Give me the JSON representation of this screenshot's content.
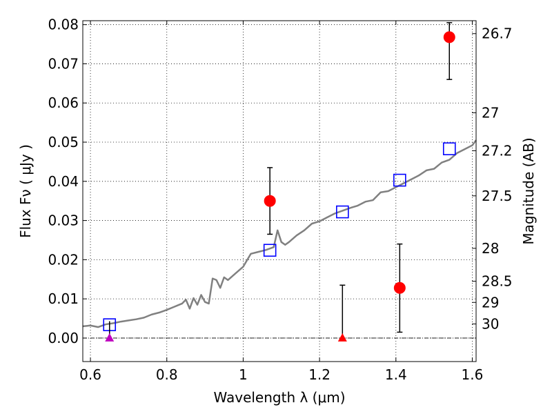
{
  "chart_data": {
    "type": "scatter",
    "title": "",
    "xlabel": "Wavelength  λ (μm)",
    "ylabel": "Flux  Fν  ( μJy )",
    "y2label": "Magnitude (AB)",
    "xlim": [
      0.58,
      1.61
    ],
    "ylim": [
      -0.006,
      0.081
    ],
    "grid": true,
    "x_ticks": [
      0.6,
      0.8,
      1.0,
      1.2,
      1.4,
      1.6
    ],
    "x_tick_labels": [
      "0.6",
      "0.8",
      "1",
      "1.2",
      "1.4",
      "1.6"
    ],
    "y_ticks": [
      0.0,
      0.01,
      0.02,
      0.03,
      0.04,
      0.05,
      0.06,
      0.07,
      0.08
    ],
    "y_tick_labels": [
      "0.00",
      "0.01",
      "0.02",
      "0.03",
      "0.04",
      "0.05",
      "0.06",
      "0.07",
      "0.08"
    ],
    "right_axis_ticks": [
      {
        "label": "26.7",
        "flux": 0.0777
      },
      {
        "label": "27",
        "flux": 0.0575
      },
      {
        "label": "27.2",
        "flux": 0.0478
      },
      {
        "label": "27.5",
        "flux": 0.0363
      },
      {
        "label": "28",
        "flux": 0.0229
      },
      {
        "label": "28.5",
        "flux": 0.0145
      },
      {
        "label": "29",
        "flux": 0.0091
      },
      {
        "label": "30",
        "flux": 0.0036
      }
    ],
    "series": [
      {
        "kind": "line",
        "color": "#808080",
        "x": [
          0.58,
          0.6,
          0.62,
          0.64,
          0.66,
          0.68,
          0.7,
          0.72,
          0.74,
          0.76,
          0.78,
          0.8,
          0.82,
          0.84,
          0.85,
          0.86,
          0.87,
          0.88,
          0.89,
          0.9,
          0.91,
          0.92,
          0.93,
          0.94,
          0.95,
          0.96,
          0.98,
          1.0,
          1.02,
          1.04,
          1.06,
          1.08,
          1.09,
          1.1,
          1.11,
          1.12,
          1.14,
          1.16,
          1.18,
          1.2,
          1.22,
          1.24,
          1.26,
          1.28,
          1.3,
          1.32,
          1.34,
          1.36,
          1.38,
          1.4,
          1.42,
          1.44,
          1.46,
          1.48,
          1.5,
          1.52,
          1.54,
          1.56,
          1.58,
          1.6,
          1.61
        ],
        "y": [
          0.003,
          0.0032,
          0.0028,
          0.0035,
          0.0038,
          0.0042,
          0.0045,
          0.0048,
          0.0052,
          0.006,
          0.0065,
          0.0072,
          0.008,
          0.0088,
          0.0098,
          0.0075,
          0.0102,
          0.0085,
          0.011,
          0.0092,
          0.0088,
          0.0152,
          0.0148,
          0.0128,
          0.0155,
          0.0148,
          0.0165,
          0.0182,
          0.0215,
          0.022,
          0.0225,
          0.0232,
          0.0275,
          0.0245,
          0.0238,
          0.0245,
          0.0262,
          0.0275,
          0.0292,
          0.0298,
          0.0308,
          0.0318,
          0.0325,
          0.0332,
          0.0338,
          0.0348,
          0.0352,
          0.0372,
          0.0375,
          0.0385,
          0.0395,
          0.0405,
          0.0415,
          0.0428,
          0.0432,
          0.0448,
          0.0455,
          0.0472,
          0.0482,
          0.0492,
          0.0505
        ]
      },
      {
        "kind": "open-square",
        "color": "#0000ff",
        "x": [
          0.65,
          1.07,
          1.26,
          1.41,
          1.54
        ],
        "y": [
          0.0034,
          0.0224,
          0.0322,
          0.0403,
          0.0483
        ]
      },
      {
        "kind": "circle-errorbar",
        "color": "#ff0000",
        "x": [
          1.07,
          1.41,
          1.54
        ],
        "y": [
          0.035,
          0.0128,
          0.0768
        ],
        "yerr_low": [
          0.0265,
          0.0015,
          0.066
        ],
        "yerr_high": [
          0.0435,
          0.024,
          0.0805
        ]
      },
      {
        "kind": "triangle-upper-limit",
        "color": "#ff0000",
        "x": [
          1.26
        ],
        "y": [
          0.0
        ],
        "yerr_high": [
          0.0135
        ]
      },
      {
        "kind": "triangle",
        "color": "#bf00bf",
        "x": [
          0.65
        ],
        "y": [
          0.0
        ]
      }
    ]
  }
}
